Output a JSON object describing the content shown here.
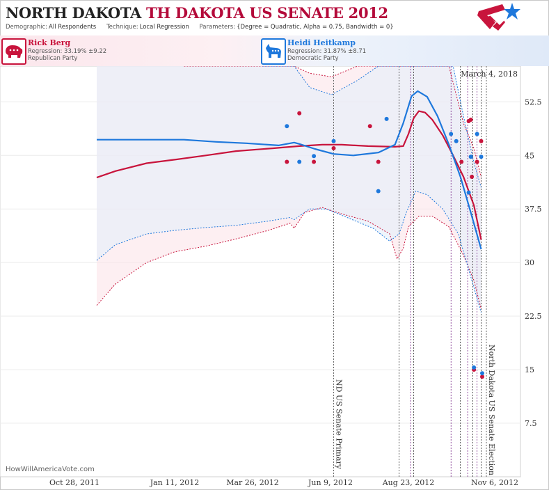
{
  "header": {
    "state": "NORTH DAKOTA",
    "race": "TH DAKOTA US SENATE 2012",
    "demographic_label": "Demographic:",
    "demographic": "All Respondents",
    "technique_label": "Technique:",
    "technique": "Local Regression",
    "parameters_label": "Parameters:",
    "parameters": "{Degree = Quadratic, Alpha = 0.75, Bandwidth = 0}"
  },
  "candidates": {
    "rep": {
      "name": "Rick Berg",
      "regression": "Regression: 33.19% ±9.22",
      "party": "Republican Party",
      "color": "#c8143c",
      "icon": "elephant-icon"
    },
    "dem": {
      "name": "Heidi Heitkamp",
      "regression": "Regression: 31.87% ±8.71",
      "party": "Democratic Party",
      "color": "#1e78dc",
      "icon": "donkey-icon"
    }
  },
  "colors": {
    "rep": "#c8143c",
    "dem": "#1e78dc",
    "band_rep": "#fbe4ea",
    "band_dem": "#e4eefa",
    "band_overlap": "#f2eaf4"
  },
  "credit": "HowWillAmericaVote.com",
  "chart_data": {
    "type": "line",
    "date_label": "March 4, 2018",
    "x_ticks": [
      "Oct 28, 2011",
      "Jan 11, 2012",
      "Mar 26, 2012",
      "Jun 9, 2012",
      "Aug 23, 2012",
      "Nov 6, 2012"
    ],
    "y_ticks": [
      7.5,
      15,
      22.5,
      30,
      37.5,
      45,
      52.5
    ],
    "ylim": [
      0,
      57.5
    ],
    "annotations": [
      {
        "date": "2012-06-12",
        "label": "ND US Senate Primary"
      },
      {
        "date": "2012-11-06",
        "label": "North Dakota US Senate Election"
      }
    ],
    "poll_dates": [
      "2012-08-14",
      "2012-08-25",
      "2012-08-28",
      "2012-10-03",
      "2012-10-12",
      "2012-10-19",
      "2012-10-24",
      "2012-10-28",
      "2012-11-01"
    ],
    "series": [
      {
        "name": "Rick Berg",
        "color": "#c8143c",
        "trend": [
          [
            "2011-10-28",
            41.9
          ],
          [
            "2011-11-15",
            42.8
          ],
          [
            "2011-12-15",
            43.9
          ],
          [
            "2012-01-11",
            44.4
          ],
          [
            "2012-02-10",
            45.0
          ],
          [
            "2012-03-10",
            45.6
          ],
          [
            "2012-04-15",
            46.0
          ],
          [
            "2012-05-10",
            46.3
          ],
          [
            "2012-06-01",
            46.5
          ],
          [
            "2012-06-20",
            46.5
          ],
          [
            "2012-07-15",
            46.3
          ],
          [
            "2012-08-10",
            46.2
          ],
          [
            "2012-08-18",
            46.3
          ],
          [
            "2012-08-23",
            48.0
          ],
          [
            "2012-08-28",
            50.2
          ],
          [
            "2012-09-02",
            51.2
          ],
          [
            "2012-09-08",
            51.0
          ],
          [
            "2012-09-15",
            50.0
          ],
          [
            "2012-09-25",
            47.8
          ],
          [
            "2012-10-05",
            45.0
          ],
          [
            "2012-10-15",
            42.0
          ],
          [
            "2012-10-25",
            38.0
          ],
          [
            "2012-11-01",
            33.19
          ]
        ],
        "upper": [
          [
            "2012-01-20",
            57.5
          ],
          [
            "2012-04-20",
            57.5
          ],
          [
            "2012-05-05",
            58.5
          ],
          [
            "2012-05-20",
            56.5
          ],
          [
            "2012-06-10",
            56.0
          ],
          [
            "2012-07-05",
            57.5
          ],
          [
            "2012-07-25",
            58.5
          ],
          [
            "2012-08-20",
            57.5
          ],
          [
            "2012-09-10",
            57.5
          ],
          [
            "2012-10-01",
            57.5
          ],
          [
            "2012-10-15",
            49.5
          ],
          [
            "2012-10-25",
            46.0
          ],
          [
            "2012-11-01",
            42.0
          ]
        ],
        "lower": [
          [
            "2011-10-28",
            24.0
          ],
          [
            "2011-11-15",
            27.0
          ],
          [
            "2011-12-15",
            30.0
          ],
          [
            "2012-01-11",
            31.5
          ],
          [
            "2012-02-10",
            32.3
          ],
          [
            "2012-03-10",
            33.3
          ],
          [
            "2012-04-10",
            34.5
          ],
          [
            "2012-05-01",
            35.5
          ],
          [
            "2012-05-05",
            34.8
          ],
          [
            "2012-05-15",
            37.0
          ],
          [
            "2012-06-01",
            37.7
          ],
          [
            "2012-06-20",
            36.8
          ],
          [
            "2012-07-15",
            35.8
          ],
          [
            "2012-08-05",
            34.0
          ],
          [
            "2012-08-12",
            30.5
          ],
          [
            "2012-08-18",
            32.0
          ],
          [
            "2012-08-23",
            35.0
          ],
          [
            "2012-09-02",
            36.5
          ],
          [
            "2012-09-15",
            36.5
          ],
          [
            "2012-10-01",
            35.0
          ],
          [
            "2012-10-15",
            31.0
          ],
          [
            "2012-10-25",
            27.5
          ],
          [
            "2012-11-01",
            23.5
          ]
        ],
        "polls": [
          [
            "2012-04-28",
            44.1
          ],
          [
            "2012-05-10",
            50.9
          ],
          [
            "2012-05-24",
            44.1
          ],
          [
            "2012-06-12",
            46.0
          ],
          [
            "2012-07-17",
            49.1
          ],
          [
            "2012-07-25",
            44.1
          ],
          [
            "2012-10-13",
            44.1
          ],
          [
            "2012-10-20",
            49.8
          ],
          [
            "2012-10-22",
            50.0
          ],
          [
            "2012-10-23",
            42.0
          ],
          [
            "2012-10-25",
            15.0
          ],
          [
            "2012-10-28",
            44.1
          ],
          [
            "2012-11-01",
            47.0
          ],
          [
            "2012-11-02",
            14.0
          ]
        ]
      },
      {
        "name": "Heidi Heitkamp",
        "color": "#1e78dc",
        "trend": [
          [
            "2011-10-28",
            47.2
          ],
          [
            "2011-12-15",
            47.2
          ],
          [
            "2012-01-20",
            47.2
          ],
          [
            "2012-02-20",
            46.9
          ],
          [
            "2012-03-20",
            46.7
          ],
          [
            "2012-04-20",
            46.4
          ],
          [
            "2012-05-05",
            46.8
          ],
          [
            "2012-05-10",
            46.6
          ],
          [
            "2012-05-25",
            45.9
          ],
          [
            "2012-06-12",
            45.2
          ],
          [
            "2012-07-01",
            45.0
          ],
          [
            "2012-07-25",
            45.4
          ],
          [
            "2012-08-10",
            46.5
          ],
          [
            "2012-08-18",
            49.5
          ],
          [
            "2012-08-26",
            53.3
          ],
          [
            "2012-09-01",
            54.0
          ],
          [
            "2012-09-10",
            53.2
          ],
          [
            "2012-09-20",
            50.5
          ],
          [
            "2012-10-01",
            46.5
          ],
          [
            "2012-10-12",
            42.0
          ],
          [
            "2012-10-22",
            37.0
          ],
          [
            "2012-11-01",
            31.87
          ]
        ],
        "upper": [
          [
            "2012-04-05",
            57.5
          ],
          [
            "2012-05-05",
            58.5
          ],
          [
            "2012-05-20",
            54.5
          ],
          [
            "2012-06-10",
            53.5
          ],
          [
            "2012-07-05",
            55.5
          ],
          [
            "2012-07-25",
            57.5
          ],
          [
            "2012-10-05",
            57.5
          ],
          [
            "2012-10-15",
            50.5
          ],
          [
            "2012-10-25",
            44.0
          ],
          [
            "2012-11-01",
            40.5
          ]
        ],
        "lower": [
          [
            "2011-10-28",
            30.3
          ],
          [
            "2011-11-15",
            32.5
          ],
          [
            "2011-12-15",
            34.0
          ],
          [
            "2012-01-11",
            34.5
          ],
          [
            "2012-02-10",
            34.9
          ],
          [
            "2012-03-10",
            35.2
          ],
          [
            "2012-04-10",
            35.8
          ],
          [
            "2012-05-01",
            36.3
          ],
          [
            "2012-05-05",
            36.0
          ],
          [
            "2012-05-20",
            37.5
          ],
          [
            "2012-06-05",
            37.5
          ],
          [
            "2012-06-25",
            36.3
          ],
          [
            "2012-07-20",
            34.8
          ],
          [
            "2012-08-05",
            33.0
          ],
          [
            "2012-08-14",
            34.0
          ],
          [
            "2012-08-21",
            37.0
          ],
          [
            "2012-08-30",
            40.0
          ],
          [
            "2012-09-10",
            39.5
          ],
          [
            "2012-09-25",
            37.5
          ],
          [
            "2012-10-10",
            34.0
          ],
          [
            "2012-10-20",
            29.0
          ],
          [
            "2012-11-01",
            23.0
          ]
        ],
        "polls": [
          [
            "2012-04-28",
            49.1
          ],
          [
            "2012-05-10",
            44.1
          ],
          [
            "2012-05-24",
            44.9
          ],
          [
            "2012-06-12",
            47.0
          ],
          [
            "2012-07-25",
            40.0
          ],
          [
            "2012-08-02",
            50.1
          ],
          [
            "2012-10-03",
            48.0
          ],
          [
            "2012-10-08",
            47.0
          ],
          [
            "2012-10-20",
            39.8
          ],
          [
            "2012-10-22",
            44.8
          ],
          [
            "2012-10-25",
            15.3
          ],
          [
            "2012-10-28",
            48.0
          ],
          [
            "2012-11-01",
            44.8
          ],
          [
            "2012-11-02",
            14.5
          ]
        ]
      }
    ]
  }
}
